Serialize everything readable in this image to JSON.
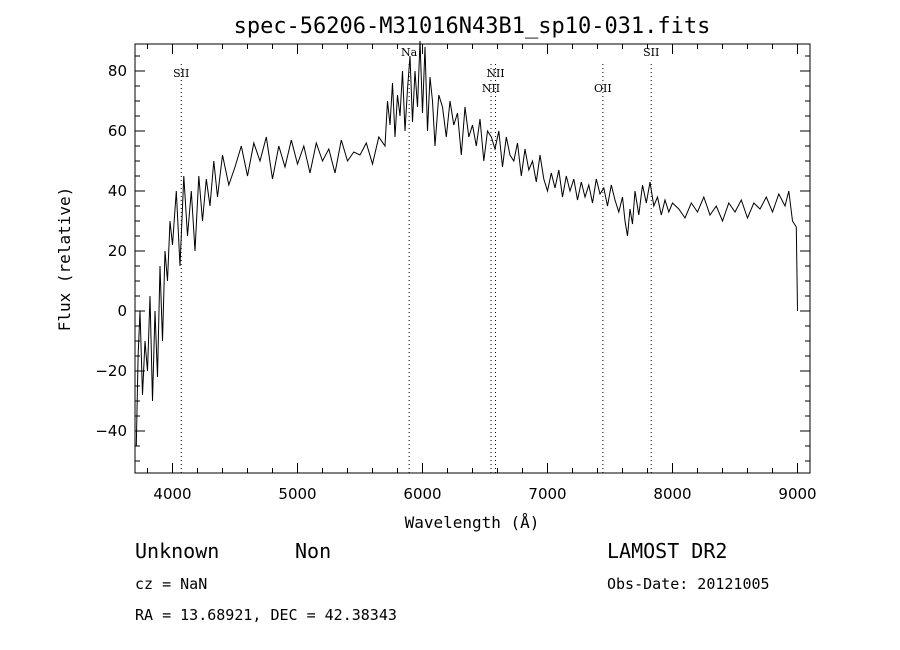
{
  "chart_data": {
    "type": "line",
    "title": "spec-56206-M31016N43B1_sp10-031.fits",
    "xlabel": "Wavelength (Å)",
    "ylabel": "Flux (relative)",
    "xlim": [
      3700,
      9100
    ],
    "ylim": [
      -54,
      89
    ],
    "xticks": [
      4000,
      5000,
      6000,
      7000,
      8000,
      9000
    ],
    "yticks": [
      -40,
      -20,
      0,
      20,
      40,
      60,
      80
    ],
    "grid": false,
    "series": [
      {
        "x": [
          3710,
          3725,
          3740,
          3760,
          3780,
          3800,
          3820,
          3840,
          3860,
          3880,
          3900,
          3920,
          3940,
          3960,
          3980,
          4000,
          4030,
          4060,
          4090,
          4120,
          4150,
          4180,
          4210,
          4240,
          4270,
          4300,
          4330,
          4360,
          4400,
          4450,
          4500,
          4550,
          4600,
          4650,
          4700,
          4750,
          4800,
          4850,
          4900,
          4950,
          5000,
          5050,
          5100,
          5150,
          5200,
          5250,
          5300,
          5350,
          5400,
          5450,
          5500,
          5550,
          5600,
          5650,
          5700,
          5720,
          5740,
          5760,
          5780,
          5800,
          5820,
          5840,
          5860,
          5880,
          5900,
          5920,
          5940,
          5960,
          5980,
          6000,
          6020,
          6040,
          6060,
          6080,
          6100,
          6130,
          6160,
          6190,
          6220,
          6250,
          6280,
          6310,
          6340,
          6370,
          6400,
          6430,
          6460,
          6490,
          6520,
          6550,
          6580,
          6610,
          6640,
          6670,
          6700,
          6730,
          6760,
          6790,
          6820,
          6850,
          6880,
          6910,
          6940,
          6970,
          7000,
          7030,
          7060,
          7090,
          7120,
          7150,
          7180,
          7210,
          7240,
          7270,
          7300,
          7330,
          7360,
          7390,
          7420,
          7450,
          7480,
          7510,
          7540,
          7570,
          7600,
          7620,
          7640,
          7660,
          7680,
          7700,
          7730,
          7760,
          7790,
          7820,
          7850,
          7880,
          7910,
          7940,
          7970,
          8000,
          8050,
          8100,
          8150,
          8200,
          8250,
          8300,
          8350,
          8400,
          8450,
          8500,
          8550,
          8600,
          8650,
          8700,
          8750,
          8800,
          8850,
          8900,
          8930,
          8960,
          8990,
          9000
        ],
        "y": [
          -45,
          -15,
          0,
          -28,
          -10,
          -20,
          5,
          -30,
          0,
          -22,
          15,
          -10,
          20,
          10,
          30,
          22,
          40,
          15,
          45,
          25,
          40,
          20,
          45,
          30,
          44,
          35,
          50,
          38,
          52,
          42,
          48,
          55,
          45,
          56,
          50,
          58,
          44,
          55,
          48,
          57,
          49,
          55,
          46,
          56,
          50,
          54,
          46,
          57,
          50,
          53,
          52,
          56,
          49,
          58,
          55,
          70,
          62,
          76,
          58,
          72,
          65,
          80,
          60,
          74,
          85,
          63,
          80,
          68,
          90,
          66,
          88,
          60,
          78,
          70,
          55,
          72,
          68,
          58,
          70,
          62,
          66,
          52,
          68,
          58,
          62,
          55,
          64,
          50,
          60,
          58,
          54,
          60,
          48,
          58,
          52,
          50,
          56,
          45,
          54,
          47,
          50,
          43,
          52,
          44,
          40,
          46,
          41,
          47,
          38,
          45,
          40,
          44,
          37,
          43,
          38,
          42,
          36,
          44,
          39,
          41,
          35,
          42,
          37,
          33,
          38,
          30,
          25,
          34,
          29,
          40,
          32,
          42,
          36,
          43,
          35,
          38,
          32,
          37,
          33,
          36,
          34,
          31,
          36,
          33,
          38,
          32,
          35,
          30,
          36,
          33,
          37,
          31,
          36,
          34,
          38,
          33,
          39,
          35,
          40,
          30,
          28,
          0
        ]
      }
    ],
    "annotations": [
      {
        "label": "SII",
        "x": 4070,
        "y": 78
      },
      {
        "label": "Na",
        "x": 5893,
        "y": 85
      },
      {
        "label": "NII",
        "x": 6548,
        "y": 73
      },
      {
        "label": "NII",
        "x": 6584,
        "y": 78
      },
      {
        "label": "OII",
        "x": 7443,
        "y": 73
      },
      {
        "label": "SII",
        "x": 7830,
        "y": 85
      }
    ]
  },
  "footer": {
    "class": "Unknown",
    "subclass": "Non",
    "survey": "LAMOST DR2",
    "cz": "cz = NaN",
    "obs_date": "Obs-Date: 20121005",
    "radec": "RA =  13.68921, DEC =  42.38343"
  }
}
